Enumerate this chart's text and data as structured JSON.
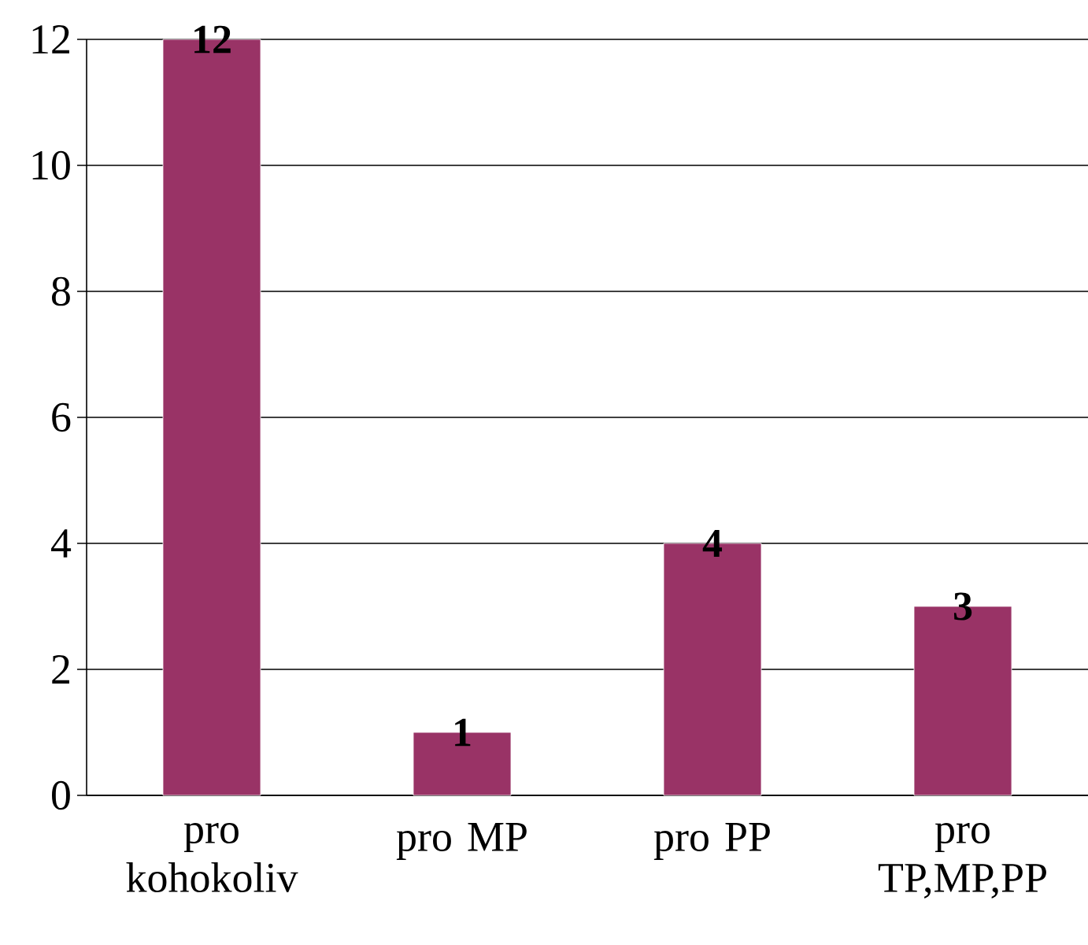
{
  "chart_data": {
    "type": "bar",
    "categories": [
      "pro kohokoliv",
      "pro MP",
      "pro PP",
      "pro TP,MP,PP"
    ],
    "values": [
      12,
      1,
      4,
      3
    ],
    "color": "#993366",
    "ylim": [
      0,
      12
    ],
    "yticks": [
      0,
      2,
      4,
      6,
      8,
      10,
      12
    ],
    "grid": "y",
    "data_labels": true
  }
}
